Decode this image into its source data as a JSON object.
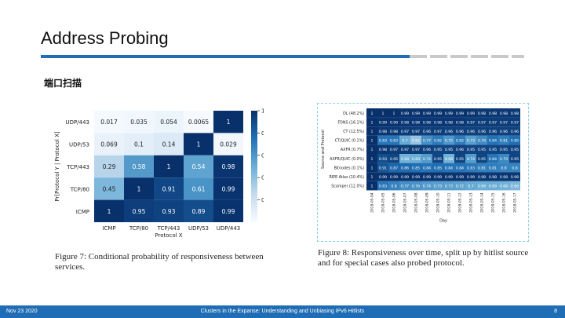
{
  "slide": {
    "title": "Address Probing",
    "subtitle": "端口扫描"
  },
  "figure7": {
    "caption": "Figure 7: Conditional probability of responsiveness between services."
  },
  "figure8": {
    "caption": "Figure 8: Responsiveness over time, split up by hitlist source and for special cases also probed protocol."
  },
  "footer": {
    "date": "Nov 23 2020",
    "title": "Clusters in the Expanse: Understanding and Unbiasing IPv6 Hitlists",
    "page": "8"
  },
  "chart_data": [
    {
      "type": "heatmap",
      "title": "",
      "xlabel": "Protocol X",
      "ylabel": "Pr[Protocol Y | Protocol X]",
      "x": [
        "ICMP",
        "TCP/80",
        "TCP/443",
        "UDP/53",
        "UDP/443"
      ],
      "y": [
        "UDP/443",
        "UDP/53",
        "TCP/443",
        "TCP/80",
        "ICMP"
      ],
      "values": [
        [
          "0.017",
          "0.035",
          "0.054",
          "0.0065",
          "1"
        ],
        [
          "0.069",
          "0.1",
          "0.14",
          "1",
          "0.029"
        ],
        [
          "0.29",
          "0.58",
          "1",
          "0.54",
          "0.98"
        ],
        [
          "0.45",
          "1",
          "0.91",
          "0.61",
          "0.99"
        ],
        [
          "1",
          "0.95",
          "0.93",
          "0.89",
          "0.99"
        ]
      ],
      "colorbar_ticks": [
        "1.0",
        "0.8",
        "0.6",
        "0.4",
        "0.2"
      ],
      "colorbar_range": [
        0,
        1
      ],
      "colormap": [
        "#f7fbff",
        "#c6dbef",
        "#6baed6",
        "#2171b5",
        "#08306b"
      ]
    },
    {
      "type": "heatmap",
      "title": "",
      "xlabel": "Day",
      "ylabel": "Source and Protocol",
      "x": [
        "2018-05-04",
        "2018-05-05",
        "2018-05-06",
        "2018-05-07",
        "2018-05-08",
        "2018-05-09",
        "2018-05-10",
        "2018-05-11",
        "2018-05-12",
        "2018-05-13",
        "2018-05-14",
        "2018-05-15",
        "2018-05-16",
        "2018-05-17"
      ],
      "y": [
        "DL (48.2%)",
        "FDNS (16.1%)",
        "CT (12.5%)",
        "CT/QUIC (0.1%)",
        "AXFR (0.7%)",
        "AXFR/QUIC (0.0%)",
        "Bitnodes (0.1%)",
        "RIPE Atlas (10.4%)",
        "Scamper (12.0%)"
      ],
      "values": [
        [
          "1",
          "1",
          "1",
          "0.99",
          "0.99",
          "0.99",
          "0.99",
          "0.99",
          "0.99",
          "0.99",
          "0.98",
          "0.98",
          "0.98",
          "0.98"
        ],
        [
          "1",
          "0.99",
          "0.99",
          "0.98",
          "0.98",
          "0.98",
          "0.98",
          "0.98",
          "0.98",
          "0.97",
          "0.97",
          "0.97",
          "0.97",
          "0.97"
        ],
        [
          "1",
          "0.98",
          "0.98",
          "0.97",
          "0.97",
          "0.96",
          "0.97",
          "0.96",
          "0.96",
          "0.96",
          "0.96",
          "0.96",
          "0.96",
          "0.96"
        ],
        [
          "1",
          "0.83",
          "0.83",
          "0.7",
          "0.62",
          "0.77",
          "0.82",
          "0.75",
          "0.82",
          "0.73",
          "0.78",
          "0.84",
          "0.81",
          "0.85"
        ],
        [
          "1",
          "0.98",
          "0.97",
          "0.97",
          "0.97",
          "0.96",
          "0.95",
          "0.95",
          "0.96",
          "0.95",
          "0.95",
          "0.95",
          "0.95",
          "0.95"
        ],
        [
          "1",
          "0.93",
          "0.95",
          "0.68",
          "0.69",
          "0.74",
          "0.95",
          "0.68",
          "0.95",
          "0.74",
          "0.95",
          "0.84",
          "0.79",
          "0.95"
        ],
        [
          "1",
          "0.91",
          "0.87",
          "0.86",
          "0.85",
          "0.84",
          "0.85",
          "0.84",
          "0.84",
          "0.83",
          "0.81",
          "0.81",
          "0.8",
          "0.8"
        ],
        [
          "1",
          "0.99",
          "0.99",
          "0.99",
          "0.99",
          "0.99",
          "0.99",
          "0.99",
          "0.99",
          "0.99",
          "0.98",
          "0.98",
          "0.98",
          "0.98"
        ],
        [
          "1",
          "0.83",
          "0.8",
          "0.77",
          "0.76",
          "0.74",
          "0.73",
          "0.73",
          "0.72",
          "0.7",
          "0.69",
          "0.69",
          "0.68",
          "0.66"
        ]
      ],
      "colormap": [
        "#f7fbff",
        "#c6dbef",
        "#6baed6",
        "#2171b5",
        "#08306b"
      ]
    }
  ]
}
